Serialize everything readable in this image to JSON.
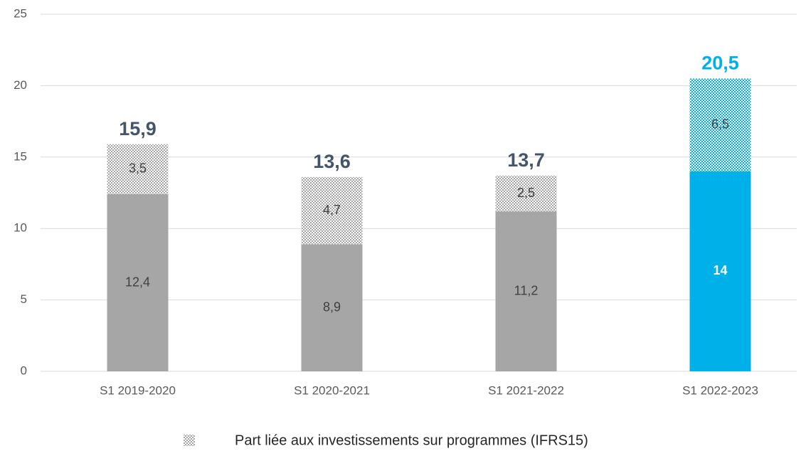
{
  "chart_data": {
    "type": "stacked-bar",
    "categories": [
      "S1 2019-2020",
      "S1 2020-2021",
      "S1 2021-2022",
      "S1 2022-2023"
    ],
    "series": [
      {
        "colors": [
          "#a6a6a6",
          "#a6a6a6",
          "#a6a6a6",
          "#00b0e8"
        ],
        "label_colors": [
          "#404040",
          "#404040",
          "#404040",
          "#ffffff"
        ],
        "values": [
          12.4,
          8.9,
          11.2,
          14
        ],
        "value_labels": [
          "12,4",
          "8,9",
          "11,2",
          "14"
        ]
      },
      {
        "name": "Part liée aux investissements sur programmes (IFRS15)",
        "colors": [
          "#a6a6a6",
          "#a6a6a6",
          "#a6a6a6",
          "#00b0e8"
        ],
        "pattern": "dots",
        "values": [
          3.5,
          4.7,
          2.5,
          6.5
        ],
        "value_labels": [
          "3,5",
          "4,7",
          "2,5",
          "6,5"
        ]
      }
    ],
    "totals": {
      "values": [
        15.9,
        13.6,
        13.7,
        20.5
      ],
      "value_labels": [
        "15,9",
        "13,6",
        "13,7",
        "20,5"
      ],
      "colors": [
        "#44546a",
        "#44546a",
        "#44546a",
        "#00b0e8"
      ]
    },
    "ylim": [
      0,
      25
    ],
    "yticks": [
      0,
      5,
      10,
      15,
      20,
      25
    ],
    "grid": true
  }
}
